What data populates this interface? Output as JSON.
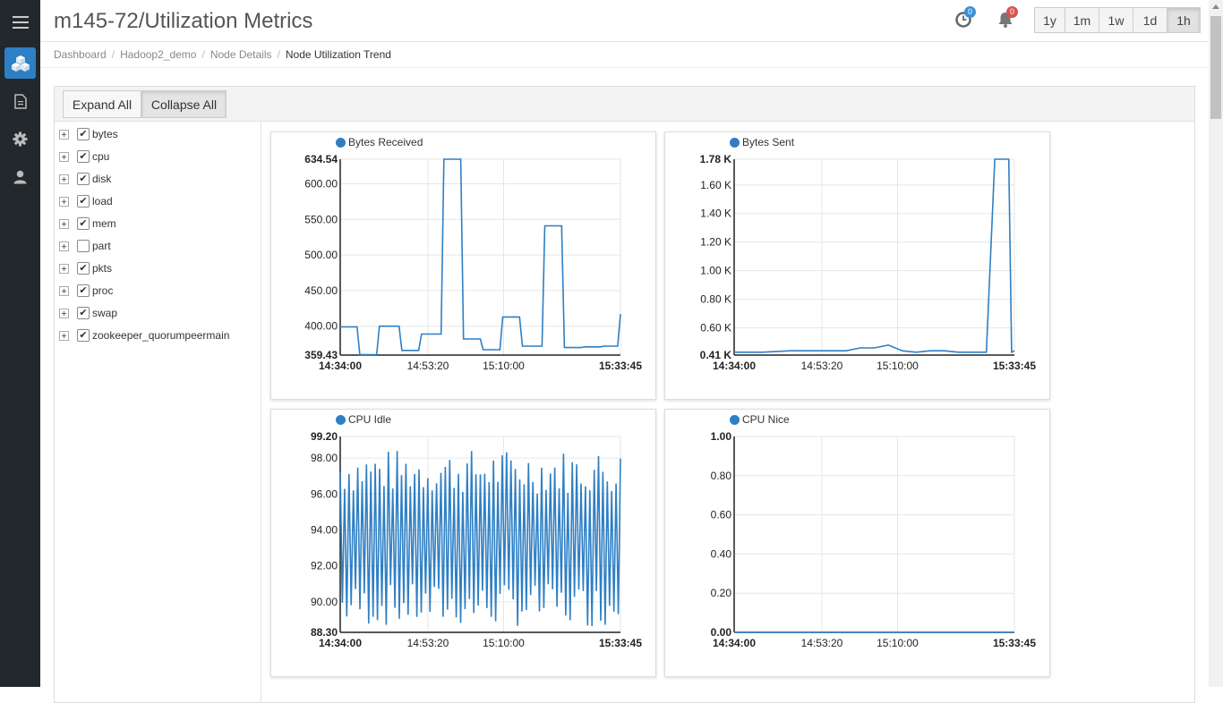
{
  "header": {
    "title": "m145-72/Utilization Metrics"
  },
  "notifications": {
    "history_count": "0",
    "alerts_count": "0"
  },
  "range_buttons": [
    {
      "label": "1y",
      "active": false
    },
    {
      "label": "1m",
      "active": false
    },
    {
      "label": "1w",
      "active": false
    },
    {
      "label": "1d",
      "active": false
    },
    {
      "label": "1h",
      "active": true
    }
  ],
  "breadcrumb": {
    "items": [
      "Dashboard",
      "Hadoop2_demo",
      "Node Details"
    ],
    "current": "Node Utilization Trend"
  },
  "toolbar": {
    "expand_all": "Expand All",
    "collapse_all": "Collapse All"
  },
  "tree": {
    "items": [
      {
        "label": "bytes",
        "checked": true
      },
      {
        "label": "cpu",
        "checked": true
      },
      {
        "label": "disk",
        "checked": true
      },
      {
        "label": "load",
        "checked": true
      },
      {
        "label": "mem",
        "checked": true
      },
      {
        "label": "part",
        "checked": false
      },
      {
        "label": "pkts",
        "checked": true
      },
      {
        "label": "proc",
        "checked": true
      },
      {
        "label": "swap",
        "checked": true
      },
      {
        "label": "zookeeper_quorumpeermain",
        "checked": true
      }
    ]
  },
  "colors": {
    "series": "#2e7fc4",
    "accent": "#2e7fc4",
    "history_badge": "#3b8fd9",
    "alert_badge": "#d9534f"
  },
  "chart_data": [
    {
      "type": "line",
      "series_name": "Bytes Received",
      "x_ticks": [
        "14:34:00",
        "14:53:20",
        "15:10:00",
        "15:33:45"
      ],
      "y_ticks": [
        "634.54",
        "600.00",
        "550.00",
        "500.00",
        "450.00",
        "400.00",
        "359.43"
      ],
      "ylim": [
        359.43,
        634.54
      ],
      "x": [
        0,
        0.06,
        0.07,
        0.13,
        0.14,
        0.21,
        0.22,
        0.28,
        0.29,
        0.36,
        0.37,
        0.43,
        0.44,
        0.5,
        0.51,
        0.57,
        0.58,
        0.64,
        0.65,
        0.72,
        0.73,
        0.79,
        0.8,
        0.86,
        0.87,
        0.93,
        0.94,
        0.99,
        1.0
      ],
      "values": [
        399,
        399,
        360,
        360,
        400,
        400,
        366,
        366,
        389,
        389,
        634.5,
        634.5,
        382,
        382,
        367,
        367,
        413,
        413,
        372,
        372,
        541,
        541,
        370,
        370,
        371,
        371,
        372,
        372,
        417
      ]
    },
    {
      "type": "line",
      "series_name": "Bytes Sent",
      "x_ticks": [
        "14:34:00",
        "14:53:20",
        "15:10:00",
        "15:33:45"
      ],
      "y_ticks": [
        "1.78 K",
        "1.60 K",
        "1.40 K",
        "1.20 K",
        "1.00 K",
        "0.80 K",
        "0.60 K",
        "0.41 K"
      ],
      "ylim": [
        0.41,
        1.78
      ],
      "x": [
        0,
        0.1,
        0.2,
        0.3,
        0.4,
        0.45,
        0.5,
        0.55,
        0.6,
        0.65,
        0.7,
        0.75,
        0.8,
        0.85,
        0.9,
        0.93,
        0.94,
        0.98,
        0.99,
        1.0
      ],
      "values": [
        0.43,
        0.43,
        0.44,
        0.44,
        0.44,
        0.46,
        0.46,
        0.48,
        0.44,
        0.43,
        0.44,
        0.44,
        0.43,
        0.43,
        0.43,
        1.78,
        1.78,
        1.78,
        0.43,
        0.44
      ]
    },
    {
      "type": "line",
      "series_name": "CPU Idle",
      "x_ticks": [
        "14:34:00",
        "14:53:20",
        "15:10:00",
        "15:33:45"
      ],
      "y_ticks": [
        "99.20",
        "98.00",
        "96.00",
        "94.00",
        "92.00",
        "90.00",
        "88.30"
      ],
      "ylim": [
        88.3,
        99.2
      ],
      "oscillating": {
        "count": 64,
        "high": [
          96.0,
          98.5
        ],
        "low": [
          88.6,
          91.0
        ]
      }
    },
    {
      "type": "line",
      "series_name": "CPU Nice",
      "x_ticks": [
        "14:34:00",
        "14:53:20",
        "15:10:00",
        "15:33:45"
      ],
      "y_ticks": [
        "1.00",
        "0.80",
        "0.60",
        "0.40",
        "0.20",
        "0.00"
      ],
      "ylim": [
        0,
        1
      ],
      "x": [
        0,
        1
      ],
      "values": [
        0,
        0
      ]
    }
  ]
}
